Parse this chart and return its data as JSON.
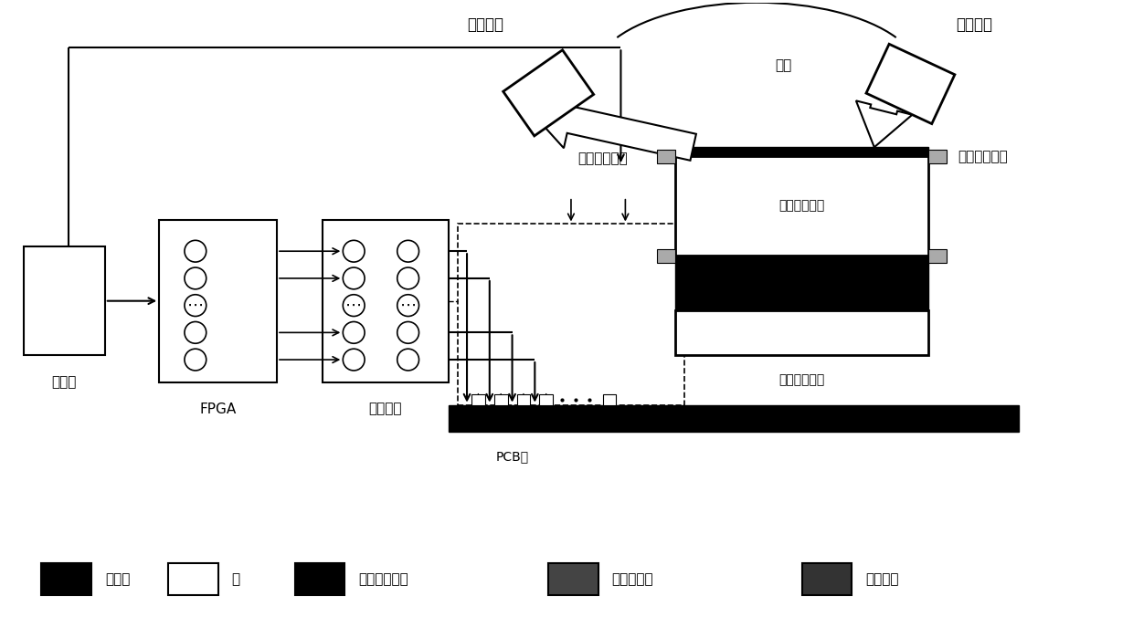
{
  "bg_color": "#ffffff",
  "fig_width": 12.4,
  "fig_height": 6.99,
  "labels": {
    "computer": "计算机",
    "fpga": "FPGA",
    "amplifier": "放大电路",
    "pcb": "PCB板",
    "receiver": "接收模块",
    "transmitter": "发射模块",
    "turntable": "转台",
    "reflected": "反射太赫兹波",
    "incident": "入射太赫兹波",
    "upper_substrate": "上层石英衬底",
    "lower_substrate": "下层石英衬底",
    "mela": "麦拉膜",
    "gold": "金",
    "uv": "紫外光取向剂",
    "nematic": "向列型液晶",
    "silver": "导电银胶"
  },
  "coord": {
    "xlim": [
      0,
      124
    ],
    "ylim": [
      0,
      70
    ]
  }
}
